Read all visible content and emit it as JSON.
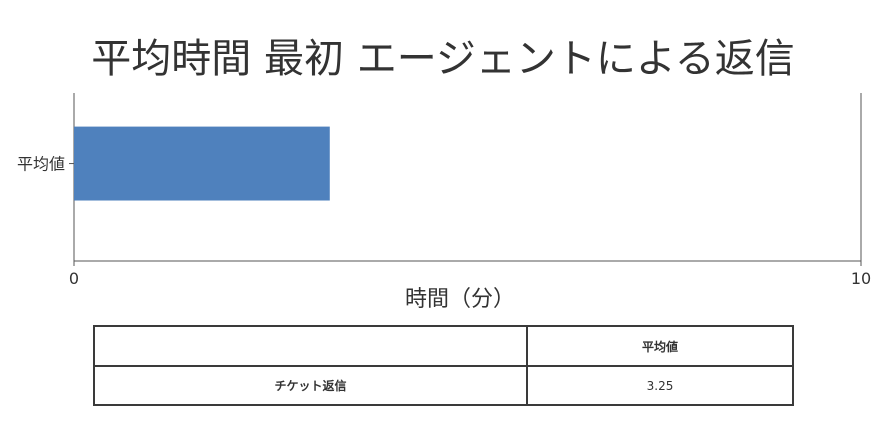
{
  "chart_data": {
    "type": "bar",
    "orientation": "horizontal",
    "title": "平均時間 最初 エージェントによる返信",
    "xlabel": "時間（分）",
    "ylabel": "",
    "categories": [
      "平均値"
    ],
    "series": [
      {
        "values": [
          3.25
        ],
        "color": "#4f81bd"
      }
    ],
    "xlim": [
      0,
      10
    ],
    "x_ticks": [
      "0",
      "10"
    ],
    "grid": false,
    "legend": "none"
  },
  "table": {
    "header_blank": "",
    "header_value": "平均値",
    "rows": [
      {
        "label": "チケット返信",
        "value": "3.25"
      }
    ]
  }
}
